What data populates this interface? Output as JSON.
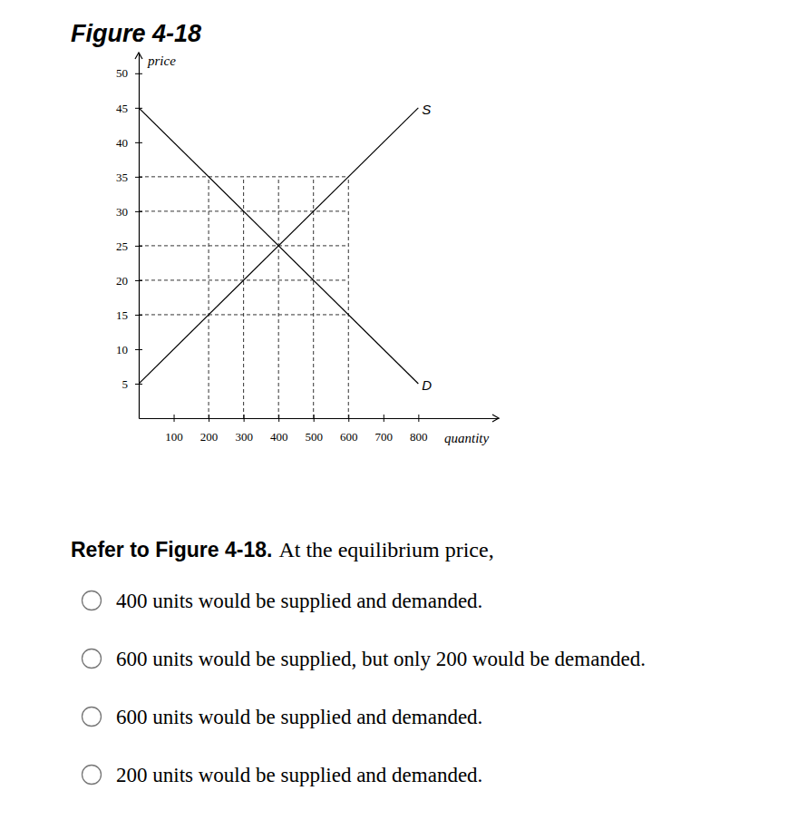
{
  "chart_data": {
    "type": "line",
    "title": "Figure 4-18",
    "x_label": "quantity",
    "y_label": "price",
    "x": [
      0,
      800
    ],
    "series": [
      {
        "name": "D",
        "color": "#000000",
        "values": [
          45,
          5
        ]
      },
      {
        "name": "S",
        "color": "#000000",
        "values": [
          5,
          45
        ]
      }
    ],
    "xlim": [
      0,
      1030
    ],
    "xticks": [
      100,
      200,
      300,
      400,
      500,
      600,
      700,
      800
    ],
    "ylim": [
      0,
      53
    ],
    "yticks": [
      5,
      10,
      15,
      20,
      25,
      30,
      35,
      40,
      45,
      50
    ],
    "guides": {
      "x": [
        200,
        300,
        400,
        500,
        600
      ],
      "y": [
        15,
        20,
        25,
        30,
        35
      ]
    }
  },
  "question": {
    "prompt_bold": "Refer to Figure 4-18.",
    "prompt": "At the equilibrium price,",
    "options": [
      "400 units would be supplied and demanded.",
      "600 units would be supplied, but only 200 would be demanded.",
      "600 units would be supplied and demanded.",
      "200 units would be supplied and demanded."
    ]
  }
}
